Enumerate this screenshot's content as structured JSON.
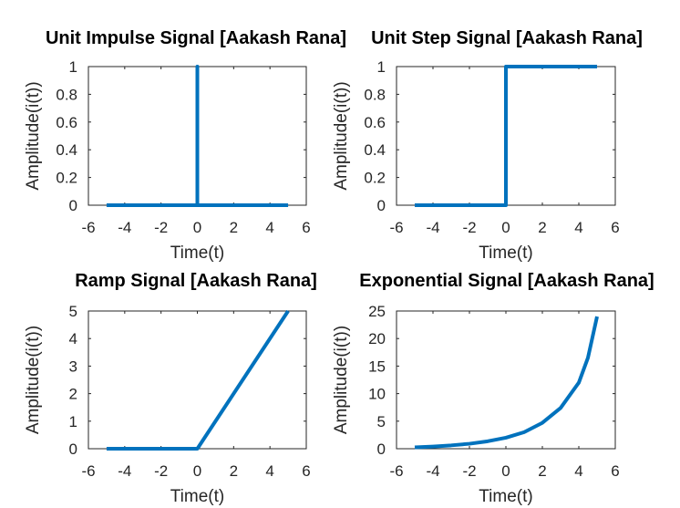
{
  "colors": {
    "series": "#0072BD",
    "axis": "#262626"
  },
  "chart_data": [
    {
      "type": "line",
      "title": "Unit Impulse Signal [Aakash Rana]",
      "xlabel": "Time(t)",
      "ylabel": "Amplitude(i(t))",
      "xlim": [
        -6,
        6
      ],
      "ylim": [
        0,
        1
      ],
      "xticks": [
        -6,
        -4,
        -2,
        0,
        2,
        4,
        6
      ],
      "yticks": [
        0,
        0.2,
        0.4,
        0.6,
        0.8,
        1
      ],
      "series": [
        {
          "points": [
            [
              -5,
              0
            ],
            [
              0,
              0
            ],
            [
              0,
              1
            ],
            [
              0,
              0
            ],
            [
              5,
              0
            ]
          ]
        }
      ]
    },
    {
      "type": "line",
      "title": "Unit Step Signal [Aakash Rana]",
      "xlabel": "Time(t)",
      "ylabel": "Amplitude(i(t))",
      "xlim": [
        -6,
        6
      ],
      "ylim": [
        0,
        1
      ],
      "xticks": [
        -6,
        -4,
        -2,
        0,
        2,
        4,
        6
      ],
      "yticks": [
        0,
        0.2,
        0.4,
        0.6,
        0.8,
        1
      ],
      "series": [
        {
          "points": [
            [
              -5,
              0
            ],
            [
              0,
              0
            ],
            [
              0,
              1
            ],
            [
              5,
              1
            ]
          ]
        }
      ]
    },
    {
      "type": "line",
      "title": "Ramp Signal [Aakash Rana]",
      "xlabel": "Time(t)",
      "ylabel": "Amplitude(i(t))",
      "xlim": [
        -6,
        6
      ],
      "ylim": [
        0,
        5
      ],
      "xticks": [
        -6,
        -4,
        -2,
        0,
        2,
        4,
        6
      ],
      "yticks": [
        0,
        1,
        2,
        3,
        4,
        5
      ],
      "series": [
        {
          "points": [
            [
              -5,
              0
            ],
            [
              0,
              0
            ],
            [
              5,
              5
            ]
          ]
        }
      ]
    },
    {
      "type": "line",
      "title": "Exponential Signal [Aakash Rana]",
      "xlabel": "Time(t)",
      "ylabel": "Amplitude(i(t))",
      "xlim": [
        -6,
        6
      ],
      "ylim": [
        0,
        25
      ],
      "xticks": [
        -6,
        -4,
        -2,
        0,
        2,
        4,
        6
      ],
      "yticks": [
        0,
        5,
        10,
        15,
        20,
        25
      ],
      "series": [
        {
          "points": [
            [
              -5,
              0.25
            ],
            [
              -4,
              0.4
            ],
            [
              -3,
              0.61
            ],
            [
              -2,
              0.9
            ],
            [
              -1,
              1.35
            ],
            [
              0,
              2.0
            ],
            [
              1,
              3.0
            ],
            [
              2,
              4.7
            ],
            [
              3,
              7.4
            ],
            [
              4,
              12.0
            ],
            [
              4.5,
              16.5
            ],
            [
              5,
              24.0
            ]
          ]
        }
      ]
    }
  ]
}
